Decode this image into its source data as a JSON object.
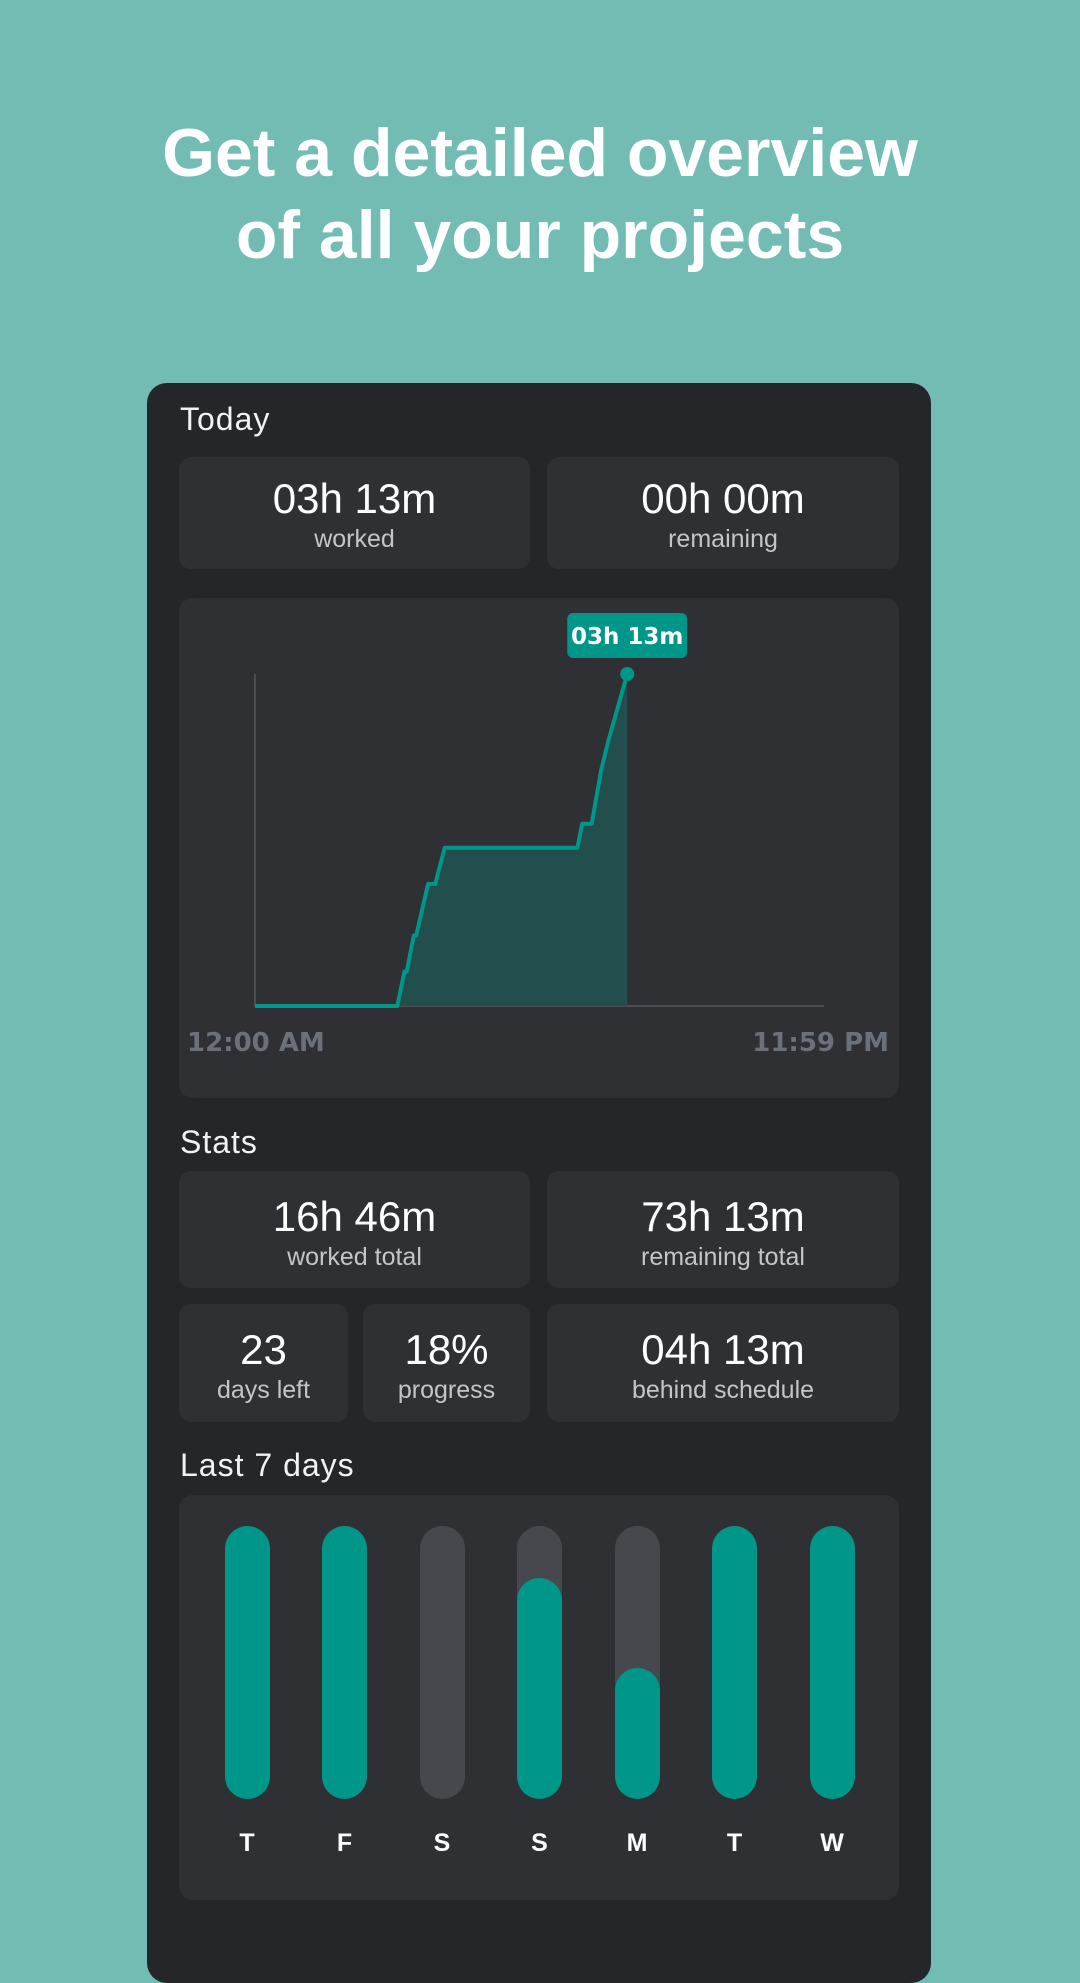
{
  "headline": [
    "Get a detailed overview",
    "of all your projects"
  ],
  "colors": {
    "background": "#72bcb4",
    "card": "#252629",
    "tile": "#2f3034",
    "accent": "#00968a",
    "track": "#47484d",
    "area": "#224f4e"
  },
  "today": {
    "label": "Today",
    "worked": {
      "value": "03h 13m",
      "label": "worked"
    },
    "remaining": {
      "value": "00h 00m",
      "label": "remaining"
    }
  },
  "chart_data": {
    "type": "line",
    "x_start_label": "12:00 AM",
    "x_end_label": "11:59 PM",
    "xlim_hours": [
      0,
      24
    ],
    "ylim_minutes": [
      0,
      193
    ],
    "tooltip": "03h 13m",
    "points": [
      [
        0,
        0
      ],
      [
        6.0,
        0
      ],
      [
        6.3,
        20
      ],
      [
        6.4,
        20
      ],
      [
        6.7,
        41
      ],
      [
        6.8,
        41
      ],
      [
        7.3,
        71
      ],
      [
        7.6,
        71
      ],
      [
        8.0,
        92
      ],
      [
        13.6,
        92
      ],
      [
        13.8,
        106
      ],
      [
        14.2,
        106
      ],
      [
        14.6,
        137
      ],
      [
        14.9,
        154
      ],
      [
        15.7,
        193
      ]
    ]
  },
  "stats": {
    "label": "Stats",
    "worked_total": {
      "value": "16h 46m",
      "label": "worked total"
    },
    "remaining_total": {
      "value": "73h 13m",
      "label": "remaining total"
    },
    "days_left": {
      "value": "23",
      "label": "days left"
    },
    "progress": {
      "value": "18%",
      "label": "progress"
    },
    "behind": {
      "value": "04h 13m",
      "label": "behind schedule"
    }
  },
  "last7": {
    "label": "Last 7 days",
    "days": [
      {
        "day": "T",
        "fill": 1.0
      },
      {
        "day": "F",
        "fill": 1.0
      },
      {
        "day": "S",
        "fill": 0
      },
      {
        "day": "S",
        "fill": 0.81
      },
      {
        "day": "M",
        "fill": 0.48
      },
      {
        "day": "T",
        "fill": 1.0
      },
      {
        "day": "W",
        "fill": 1.0
      }
    ]
  }
}
